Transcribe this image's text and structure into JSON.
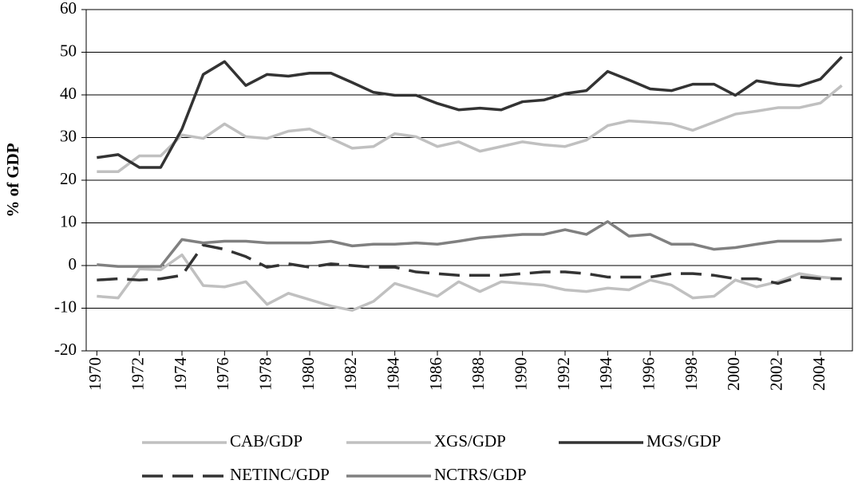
{
  "chart_data": {
    "type": "line",
    "y_label": "% of GDP",
    "x": [
      1970,
      1971,
      1972,
      1973,
      1974,
      1975,
      1976,
      1977,
      1978,
      1979,
      1980,
      1981,
      1982,
      1983,
      1984,
      1985,
      1986,
      1987,
      1988,
      1989,
      1990,
      1991,
      1992,
      1993,
      1994,
      1995,
      1996,
      1997,
      1998,
      1999,
      2000,
      2001,
      2002,
      2003,
      2004,
      2005
    ],
    "xlim": [
      1969.5,
      2005.5
    ],
    "xticks": [
      1970,
      1972,
      1974,
      1976,
      1978,
      1980,
      1982,
      1984,
      1986,
      1988,
      1990,
      1992,
      1994,
      1996,
      1998,
      2000,
      2002,
      2004
    ],
    "ylim": [
      -20,
      60
    ],
    "yticks": [
      -20,
      -10,
      0,
      10,
      20,
      30,
      40,
      50,
      60
    ],
    "grid": true,
    "legend": "bottom",
    "series": [
      {
        "name": "CAB/GDP",
        "color": "#c0c0c0",
        "style": "solid",
        "values": [
          -7.2,
          -7.6,
          -0.8,
          -1,
          2.5,
          -4.7,
          -5,
          -3.8,
          -9.1,
          -6.5,
          -8,
          -9.5,
          -10.5,
          -8.4,
          -4.2,
          -5.7,
          -7.2,
          -3.8,
          -6.1,
          -3.8,
          -4.2,
          -4.6,
          -5.7,
          -6.1,
          -5.3,
          -5.7,
          -3.4,
          -4.6,
          -7.6,
          -7.2,
          -3.4,
          -5,
          -3.8,
          -1.9,
          -2.7,
          -3.1
        ]
      },
      {
        "name": "XGS/GDP",
        "color": "#c0c0c0",
        "style": "solid",
        "values": [
          22,
          22,
          25.7,
          25.7,
          30.6,
          29.8,
          33.2,
          30.2,
          29.8,
          31.5,
          32,
          29.8,
          27.5,
          27.9,
          30.9,
          30.2,
          27.9,
          29,
          26.8,
          27.9,
          29,
          28.3,
          27.9,
          29.4,
          32.8,
          33.9,
          33.6,
          33.2,
          31.7,
          33.6,
          35.5,
          36.2,
          37,
          37,
          38.1,
          42.2
        ]
      },
      {
        "name": "MGS/GDP",
        "color": "#333333",
        "style": "solid",
        "values": [
          25.3,
          26,
          23,
          23,
          32,
          44.8,
          47.8,
          42.2,
          44.8,
          44.4,
          45.1,
          45.1,
          42.9,
          40.6,
          39.9,
          39.9,
          38,
          36.5,
          36.9,
          36.5,
          38.4,
          38.8,
          40.3,
          41,
          45.5,
          43.5,
          41.4,
          41,
          42.5,
          42.5,
          39.9,
          43.3,
          42.5,
          42.1,
          43.7,
          48.9
        ]
      },
      {
        "name": "NETINC/GDP",
        "color": "#333333",
        "style": "dashed",
        "values": [
          -3.4,
          -3.1,
          -3.4,
          -3.1,
          -2.3,
          4.8,
          3.8,
          2.1,
          -0.4,
          0.4,
          -0.4,
          0.4,
          0,
          -0.4,
          -0.4,
          -1.5,
          -1.9,
          -2.3,
          -2.3,
          -2.3,
          -1.9,
          -1.5,
          -1.5,
          -1.9,
          -2.7,
          -2.7,
          -2.7,
          -1.9,
          -1.9,
          -2.3,
          -3.1,
          -3.1,
          -4.2,
          -2.7,
          -3.1,
          -3.1
        ]
      },
      {
        "name": "NCTRS/GDP",
        "color": "#808080",
        "style": "solid",
        "values": [
          0.2,
          -0.2,
          -0.2,
          -0.2,
          6.1,
          5.3,
          5.7,
          5.7,
          5.3,
          5.3,
          5.3,
          5.7,
          4.6,
          5,
          5,
          5.3,
          5,
          5.7,
          6.5,
          6.9,
          7.3,
          7.3,
          8.4,
          7.3,
          10.3,
          6.9,
          7.3,
          5,
          5,
          3.8,
          4.2,
          5,
          5.7,
          5.7,
          5.7,
          6.1
        ]
      }
    ]
  }
}
